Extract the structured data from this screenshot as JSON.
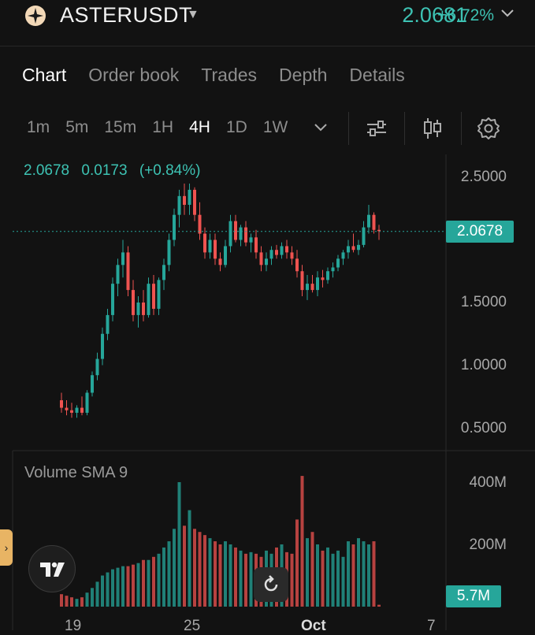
{
  "header": {
    "symbol": "ASTERUSDT",
    "price": "2.0681",
    "change": "+6.72%",
    "colors": {
      "up": "#26a69a",
      "down": "#ef5350",
      "accent": "#3dc2b3"
    }
  },
  "tabs": [
    {
      "label": "Chart",
      "active": true
    },
    {
      "label": "Order book",
      "active": false
    },
    {
      "label": "Trades",
      "active": false
    },
    {
      "label": "Depth",
      "active": false
    },
    {
      "label": "Details",
      "active": false
    }
  ],
  "intervals": [
    {
      "label": "1m",
      "active": false
    },
    {
      "label": "5m",
      "active": false
    },
    {
      "label": "15m",
      "active": false
    },
    {
      "label": "1H",
      "active": false
    },
    {
      "label": "4H",
      "active": true
    },
    {
      "label": "1D",
      "active": false
    },
    {
      "label": "1W",
      "active": false
    }
  ],
  "toolbar": {
    "icons": [
      "chevron-down-icon",
      "indicators-icon",
      "candle-type-icon",
      "gear-icon"
    ]
  },
  "ohlc": {
    "close": "2.0678",
    "change": "0.0173",
    "change_pct": "(+0.84%)"
  },
  "price_axis": {
    "labels": [
      "2.5000",
      "1.5000",
      "1.0000",
      "0.5000"
    ],
    "current": "2.0678"
  },
  "volume": {
    "label": "Volume SMA 9",
    "axis_labels": [
      "400M",
      "200M"
    ],
    "current": "5.7M"
  },
  "time_axis": {
    "labels": [
      "19",
      "25",
      "Oct",
      "7"
    ]
  },
  "chart_data": {
    "type": "candlestick",
    "price_range": [
      0.45,
      2.75
    ],
    "volume_range": [
      0,
      420
    ],
    "volume_unit": "M",
    "current_price": 2.0678,
    "candles": [
      [
        0.72,
        0.78,
        0.62,
        0.66,
        40
      ],
      [
        0.66,
        0.72,
        0.6,
        0.64,
        35
      ],
      [
        0.64,
        0.7,
        0.58,
        0.62,
        30
      ],
      [
        0.62,
        0.68,
        0.58,
        0.66,
        25
      ],
      [
        0.66,
        0.75,
        0.6,
        0.62,
        30
      ],
      [
        0.62,
        0.8,
        0.6,
        0.78,
        45
      ],
      [
        0.78,
        0.95,
        0.75,
        0.92,
        60
      ],
      [
        0.92,
        1.1,
        0.88,
        1.05,
        80
      ],
      [
        1.05,
        1.3,
        1.0,
        1.25,
        100
      ],
      [
        1.25,
        1.45,
        1.2,
        1.4,
        110
      ],
      [
        1.4,
        1.7,
        1.35,
        1.65,
        120
      ],
      [
        1.65,
        1.85,
        1.55,
        1.8,
        125
      ],
      [
        1.8,
        2.0,
        1.7,
        1.9,
        130
      ],
      [
        1.9,
        1.95,
        1.55,
        1.6,
        130
      ],
      [
        1.6,
        1.68,
        1.35,
        1.4,
        135
      ],
      [
        1.4,
        1.55,
        1.3,
        1.5,
        140
      ],
      [
        1.5,
        1.6,
        1.35,
        1.4,
        150
      ],
      [
        1.4,
        1.7,
        1.38,
        1.65,
        150
      ],
      [
        1.65,
        1.72,
        1.4,
        1.45,
        160
      ],
      [
        1.45,
        1.7,
        1.4,
        1.68,
        170
      ],
      [
        1.68,
        1.85,
        1.6,
        1.8,
        190
      ],
      [
        1.8,
        2.05,
        1.75,
        2.0,
        210
      ],
      [
        2.0,
        2.25,
        1.95,
        2.2,
        250
      ],
      [
        2.2,
        2.4,
        2.1,
        2.35,
        400
      ],
      [
        2.35,
        2.45,
        2.2,
        2.28,
        260
      ],
      [
        2.28,
        2.45,
        2.2,
        2.4,
        310
      ],
      [
        2.4,
        2.42,
        2.15,
        2.2,
        250
      ],
      [
        2.2,
        2.3,
        2.0,
        2.05,
        240
      ],
      [
        2.05,
        2.1,
        1.85,
        1.9,
        230
      ],
      [
        1.9,
        2.05,
        1.85,
        2.0,
        220
      ],
      [
        2.0,
        2.05,
        1.8,
        1.85,
        210
      ],
      [
        1.85,
        1.9,
        1.75,
        1.8,
        200
      ],
      [
        1.8,
        2.0,
        1.78,
        1.95,
        210
      ],
      [
        1.95,
        2.2,
        1.9,
        2.15,
        200
      ],
      [
        2.15,
        2.2,
        1.98,
        2.0,
        190
      ],
      [
        2.0,
        2.12,
        1.95,
        2.1,
        180
      ],
      [
        2.1,
        2.15,
        1.95,
        1.98,
        170
      ],
      [
        1.98,
        2.05,
        1.9,
        2.02,
        175
      ],
      [
        2.02,
        2.08,
        1.85,
        1.9,
        170
      ],
      [
        1.9,
        1.95,
        1.75,
        1.8,
        160
      ],
      [
        1.8,
        1.9,
        1.75,
        1.85,
        180
      ],
      [
        1.85,
        1.95,
        1.8,
        1.92,
        170
      ],
      [
        1.92,
        1.96,
        1.85,
        1.88,
        190
      ],
      [
        1.88,
        1.98,
        1.85,
        1.95,
        200
      ],
      [
        1.95,
        2.0,
        1.85,
        1.9,
        175
      ],
      [
        1.9,
        1.95,
        1.8,
        1.85,
        170
      ],
      [
        1.85,
        1.92,
        1.7,
        1.75,
        280
      ],
      [
        1.75,
        1.8,
        1.55,
        1.6,
        420
      ],
      [
        1.6,
        1.72,
        1.52,
        1.65,
        220
      ],
      [
        1.65,
        1.72,
        1.58,
        1.6,
        240
      ],
      [
        1.6,
        1.75,
        1.55,
        1.7,
        200
      ],
      [
        1.7,
        1.76,
        1.62,
        1.68,
        180
      ],
      [
        1.68,
        1.78,
        1.65,
        1.75,
        190
      ],
      [
        1.75,
        1.82,
        1.7,
        1.78,
        170
      ],
      [
        1.78,
        1.88,
        1.75,
        1.85,
        180
      ],
      [
        1.85,
        1.92,
        1.8,
        1.9,
        160
      ],
      [
        1.9,
        2.0,
        1.85,
        1.95,
        210
      ],
      [
        1.95,
        2.05,
        1.9,
        1.92,
        200
      ],
      [
        1.92,
        2.0,
        1.88,
        1.96,
        220
      ],
      [
        1.96,
        2.15,
        1.94,
        2.1,
        210
      ],
      [
        2.1,
        2.28,
        2.05,
        2.2,
        200
      ],
      [
        2.2,
        2.22,
        2.05,
        2.08,
        210
      ],
      [
        2.08,
        2.12,
        2.0,
        2.07,
        6
      ]
    ]
  }
}
